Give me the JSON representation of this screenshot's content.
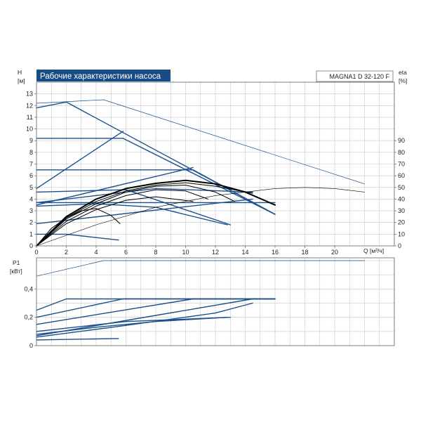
{
  "colors": {
    "curve": "#1b4f8c",
    "black_curve": "#000000",
    "grid": "#c8c8c8",
    "frame": "#707070",
    "title_bg": "#174d84",
    "title_fg": "#ffffff",
    "text": "#222222"
  },
  "chart_data": [
    {
      "type": "line",
      "title": "Рабочие характеристики насоса",
      "model_label": "MAGNA1 D 32-120 F",
      "ylabel_left": "H",
      "ylabel_left_unit": "[м]",
      "ylabel_right": "eta",
      "ylabel_right_unit": "[%]",
      "xlabel": "Q [м³/ч]",
      "xlim": [
        0,
        24
      ],
      "ylim": [
        0,
        14
      ],
      "y2lim": [
        0,
        140
      ],
      "x_ticks": [
        "0",
        "2",
        "4",
        "6",
        "8",
        "10",
        "12",
        "14",
        "16",
        "18",
        "20"
      ],
      "x_tick_values": [
        0,
        2,
        4,
        6,
        8,
        10,
        12,
        14,
        16,
        18,
        20
      ],
      "y_ticks": [
        "0",
        "1",
        "2",
        "3",
        "4",
        "5",
        "6",
        "7",
        "8",
        "9",
        "10",
        "11",
        "12",
        "13"
      ],
      "y_tick_values": [
        0,
        1,
        2,
        3,
        4,
        5,
        6,
        7,
        8,
        9,
        10,
        11,
        12,
        13
      ],
      "y2_ticks": [
        "0",
        "10",
        "20",
        "30",
        "40",
        "50",
        "60",
        "70",
        "80",
        "90"
      ],
      "y2_tick_values": [
        0,
        10,
        20,
        30,
        40,
        50,
        60,
        70,
        80,
        90
      ],
      "grid": true,
      "series": [
        {
          "axis": "left",
          "style": "thin",
          "x": [
            0,
            4.5,
            22
          ],
          "y": [
            12.2,
            12.5,
            5.3
          ]
        },
        {
          "axis": "left",
          "style": "normal",
          "x": [
            0,
            2,
            16
          ],
          "y": [
            11.8,
            12.3,
            2.7
          ]
        },
        {
          "axis": "left",
          "style": "normal",
          "x": [
            0,
            5.8,
            16
          ],
          "y": [
            9.2,
            9.2,
            2.7
          ]
        },
        {
          "axis": "left",
          "style": "normal",
          "x": [
            0,
            10.5,
            16
          ],
          "y": [
            6.5,
            6.5,
            2.7
          ]
        },
        {
          "axis": "left",
          "style": "normal",
          "x": [
            0,
            16
          ],
          "y": [
            3.7,
            3.7
          ]
        },
        {
          "axis": "left",
          "style": "normal",
          "x": [
            0,
            6,
            13
          ],
          "y": [
            4.6,
            4.8,
            1.8
          ]
        },
        {
          "axis": "left",
          "style": "normal",
          "x": [
            0,
            4,
            8,
            12.8
          ],
          "y": [
            3.4,
            3.6,
            3.3,
            1.8
          ]
        },
        {
          "axis": "left",
          "style": "normal",
          "x": [
            0,
            2,
            5.5
          ],
          "y": [
            1.0,
            1.0,
            0.5
          ]
        },
        {
          "axis": "left",
          "style": "normal",
          "x": [
            0,
            5.8
          ],
          "y": [
            4.9,
            9.8
          ]
        },
        {
          "axis": "left",
          "style": "normal",
          "x": [
            0,
            10.5
          ],
          "y": [
            3.5,
            6.7
          ]
        },
        {
          "axis": "left",
          "style": "normal",
          "x": [
            0,
            14.5
          ],
          "y": [
            1.9,
            4.0
          ]
        },
        {
          "axis": "left",
          "style": "normal",
          "x": [
            0,
            8,
            14.5
          ],
          "y": [
            3.7,
            4.9,
            4.6
          ]
        },
        {
          "axis": "left",
          "style": "black_thick",
          "x": [
            0,
            2,
            4,
            6,
            8,
            10,
            12,
            14,
            16
          ],
          "y": [
            0,
            2.5,
            4.0,
            4.9,
            5.35,
            5.6,
            5.3,
            4.6,
            3.5
          ]
        },
        {
          "axis": "left",
          "style": "black",
          "x": [
            0,
            2,
            4,
            6,
            8,
            10,
            12,
            14.5
          ],
          "y": [
            0,
            2.4,
            3.8,
            4.7,
            5.2,
            5.4,
            5.1,
            4.5
          ]
        },
        {
          "axis": "left",
          "style": "black",
          "x": [
            0,
            2,
            4,
            6,
            8,
            10,
            12,
            13.3
          ],
          "y": [
            0,
            2.3,
            3.6,
            4.6,
            5.1,
            5.2,
            4.6,
            3.8
          ]
        },
        {
          "axis": "left",
          "style": "black",
          "x": [
            0,
            2,
            4,
            6,
            8,
            10,
            11.5
          ],
          "y": [
            0,
            2.1,
            3.4,
            4.3,
            4.8,
            4.7,
            4.0
          ]
        },
        {
          "axis": "left",
          "style": "black",
          "x": [
            0,
            2,
            4,
            6,
            8,
            10.5
          ],
          "y": [
            0,
            1.9,
            3.1,
            3.9,
            4.2,
            3.8
          ]
        },
        {
          "axis": "left",
          "style": "black",
          "x": [
            0,
            1,
            2,
            3,
            4,
            5,
            5.6
          ],
          "y": [
            0,
            1.5,
            2.4,
            3.0,
            3.2,
            2.6,
            1.9
          ]
        },
        {
          "axis": "right",
          "style": "black_thin",
          "x": [
            0,
            4,
            8,
            12,
            16,
            18,
            20,
            22
          ],
          "y": [
            0,
            18,
            33,
            43,
            49,
            50,
            49,
            46
          ]
        }
      ]
    },
    {
      "type": "line",
      "ylabel": "P1",
      "ylabel_unit": "[кВт]",
      "xlim": [
        0,
        24
      ],
      "ylim": [
        0,
        0.62
      ],
      "y_ticks": [
        "0",
        "0,2",
        "0,4"
      ],
      "y_tick_values": [
        0,
        0.2,
        0.4
      ],
      "grid": true,
      "series": [
        {
          "style": "thin",
          "x": [
            0,
            4.5,
            22
          ],
          "y": [
            0.49,
            0.6,
            0.6
          ]
        },
        {
          "style": "normal",
          "x": [
            0,
            2,
            16
          ],
          "y": [
            0.25,
            0.33,
            0.33
          ]
        },
        {
          "style": "normal",
          "x": [
            0,
            5.8,
            16
          ],
          "y": [
            0.2,
            0.33,
            0.33
          ]
        },
        {
          "style": "normal",
          "x": [
            0,
            10.5,
            16
          ],
          "y": [
            0.15,
            0.33,
            0.33
          ]
        },
        {
          "style": "normal",
          "x": [
            0,
            14.5,
            16
          ],
          "y": [
            0.07,
            0.33,
            0.33
          ]
        },
        {
          "style": "normal",
          "x": [
            0,
            6,
            13
          ],
          "y": [
            0.1,
            0.17,
            0.2
          ]
        },
        {
          "style": "normal",
          "x": [
            0,
            4,
            8,
            12.8
          ],
          "y": [
            0.08,
            0.13,
            0.17,
            0.2
          ]
        },
        {
          "style": "normal",
          "x": [
            0,
            5.5
          ],
          "y": [
            0.04,
            0.05
          ]
        },
        {
          "style": "normal",
          "x": [
            0,
            5.8,
            12,
            14.5
          ],
          "y": [
            0.06,
            0.14,
            0.23,
            0.3
          ]
        }
      ]
    }
  ]
}
